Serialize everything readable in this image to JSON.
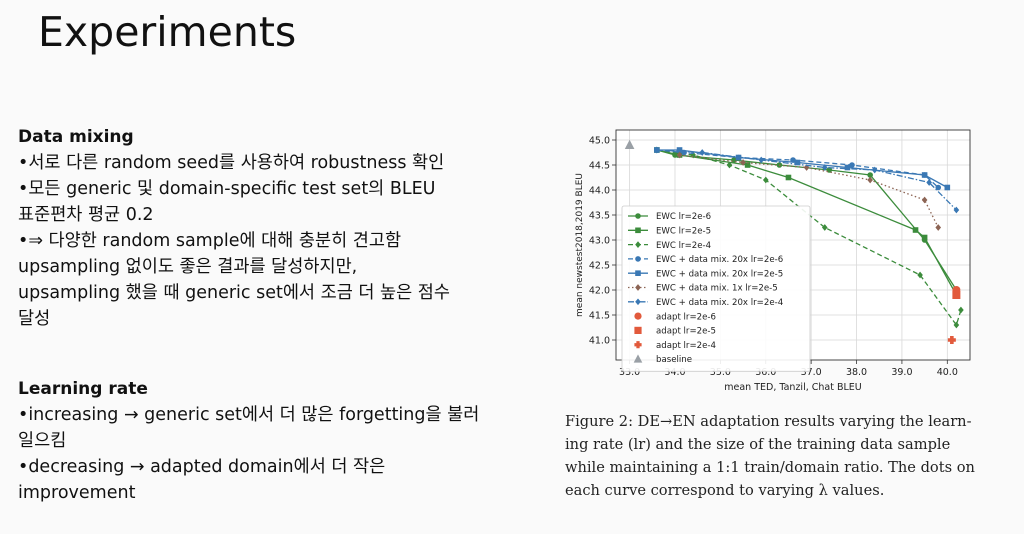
{
  "slide": {
    "title": "Experiments",
    "section1": {
      "heading": "Data mixing",
      "lines": [
        "•서로 다른 random seed를 사용하여 robustness 확인",
        "•모든 generic 및 domain-specific test set의 BLEU",
        "표준편차 평균 0.2",
        "•⇒ 다양한 random sample에 대해 충분히 견고함",
        "upsampling 없이도 좋은 결과를 달성하지만,",
        "upsampling 했을 때 generic set에서 조금 더 높은 점수",
        "달성"
      ]
    },
    "section2": {
      "heading": "Learning rate",
      "lines": [
        "•increasing → generic set에서 더 많은 forgetting을 불러",
        "일으킴",
        "•decreasing → adapted domain에서 더 작은",
        "improvement"
      ]
    },
    "caption": [
      "Figure 2: DE→EN adaptation results varying the learn-",
      "ing rate (lr) and the size of the training data sample",
      "while maintaining a 1:1 train/domain ratio. The dots on",
      "each curve correspond to varying λ values."
    ]
  },
  "chart_data": {
    "type": "line",
    "xlabel": "mean TED, Tanzil, Chat BLEU",
    "ylabel": "mean newstest2018,2019 BLEU",
    "xlim": [
      32.7,
      40.5
    ],
    "ylim": [
      40.6,
      45.2
    ],
    "xticks": [
      "33.0",
      "34.0",
      "35.0",
      "36.0",
      "37.0",
      "38.0",
      "39.0",
      "40.0"
    ],
    "yticks": [
      "41.0",
      "41.5",
      "42.0",
      "42.5",
      "43.0",
      "43.5",
      "44.0",
      "44.5",
      "45.0"
    ],
    "grid": true,
    "legend_position": "lower-left",
    "colors": {
      "green": "#3c8c3c",
      "blue": "#3a78b4",
      "brown": "#8c6454",
      "red": "#e25a3c",
      "gray": "#9aa0a6"
    },
    "series": [
      {
        "name": "EWC lr=2e-6",
        "color": "#3c8c3c",
        "marker": "circle",
        "dash": "solid",
        "x": [
          33.6,
          34.0,
          35.3,
          36.3,
          37.4,
          38.3,
          39.5,
          40.2
        ],
        "y": [
          44.8,
          44.7,
          44.6,
          44.5,
          44.4,
          44.3,
          43.0,
          42.0
        ]
      },
      {
        "name": "EWC lr=2e-5",
        "color": "#3c8c3c",
        "marker": "square",
        "dash": "solid",
        "x": [
          33.6,
          34.1,
          35.6,
          36.5,
          39.3,
          39.5,
          40.2
        ],
        "y": [
          44.8,
          44.7,
          44.5,
          44.25,
          43.2,
          43.05,
          41.9
        ]
      },
      {
        "name": "EWC lr=2e-4",
        "color": "#3c8c3c",
        "marker": "diamond",
        "dash": "dashed",
        "x": [
          33.6,
          34.4,
          35.2,
          36.0,
          37.3,
          39.4,
          40.2,
          40.3
        ],
        "y": [
          44.8,
          44.7,
          44.5,
          44.2,
          43.25,
          42.3,
          41.3,
          41.6
        ]
      },
      {
        "name": "EWC + data mix. 20x lr=2e-6",
        "color": "#3a78b4",
        "marker": "circle",
        "dash": "dashed",
        "x": [
          33.6,
          34.2,
          35.4,
          36.6,
          37.9,
          39.5,
          39.8
        ],
        "y": [
          44.8,
          44.75,
          44.65,
          44.6,
          44.5,
          44.3,
          44.05
        ]
      },
      {
        "name": "EWC + data mix. 20x lr=2e-5",
        "color": "#3a78b4",
        "marker": "square",
        "dash": "solid",
        "x": [
          33.6,
          34.1,
          35.4,
          36.7,
          37.8,
          39.5,
          40.0
        ],
        "y": [
          44.8,
          44.8,
          44.65,
          44.55,
          44.45,
          44.3,
          44.05
        ]
      },
      {
        "name": "EWC + data mix. 1x lr=2e-5",
        "color": "#8c6454",
        "marker": "diamond",
        "dash": "dotted",
        "x": [
          34.1,
          35.5,
          36.9,
          38.3,
          39.5,
          39.8
        ],
        "y": [
          44.7,
          44.55,
          44.45,
          44.2,
          43.8,
          43.25
        ]
      },
      {
        "name": "EWC + data mix. 20x lr=2e-4",
        "color": "#3a78b4",
        "marker": "diamond",
        "dash": "dashdot",
        "x": [
          33.6,
          34.6,
          35.9,
          37.3,
          38.4,
          39.6,
          40.2
        ],
        "y": [
          44.8,
          44.75,
          44.6,
          44.45,
          44.4,
          44.15,
          43.6
        ]
      },
      {
        "name": "adapt lr=2e-6",
        "color": "#e25a3c",
        "marker": "circle",
        "dash": "none",
        "x": [
          40.2
        ],
        "y": [
          42.0
        ]
      },
      {
        "name": "adapt lr=2e-5",
        "color": "#e25a3c",
        "marker": "square",
        "dash": "none",
        "x": [
          40.2
        ],
        "y": [
          41.9
        ]
      },
      {
        "name": "adapt lr=2e-4",
        "color": "#e25a3c",
        "marker": "plus",
        "dash": "none",
        "x": [
          40.1
        ],
        "y": [
          41.0
        ]
      },
      {
        "name": "baseline",
        "color": "#9aa0a6",
        "marker": "triangle",
        "dash": "none",
        "x": [
          33.0
        ],
        "y": [
          44.9
        ]
      }
    ]
  }
}
